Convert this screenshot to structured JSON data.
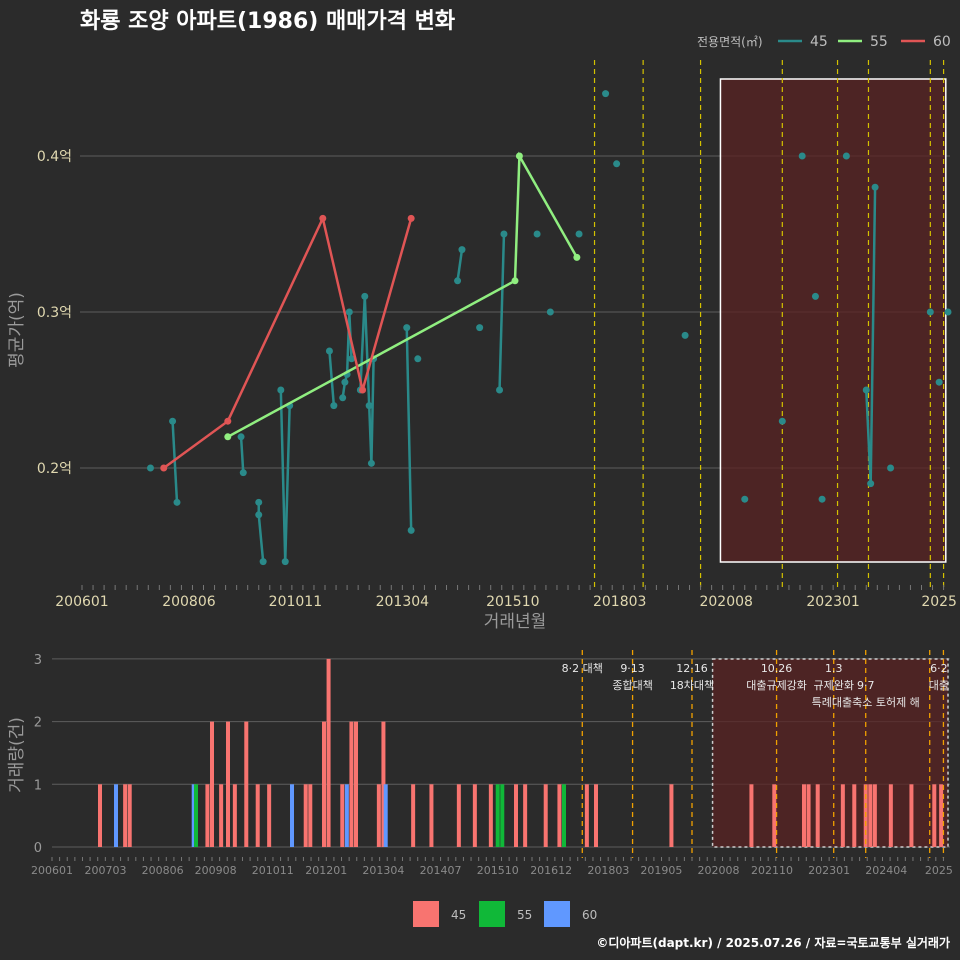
{
  "chart_data": {
    "type": "line",
    "title": "화룡 조양 아파트(1986) 매매가격 변화",
    "legend_title": "전용면적(㎡)",
    "legend_position": "top-right",
    "colors": {
      "45": "#2a8a8a",
      "55": "#90ee80",
      "60": "#e05555",
      "bar45": "#f87470",
      "bar55": "#10b838",
      "bar60": "#6098ff",
      "policy": "#d4c200",
      "highlight": "#5a2323"
    },
    "x_ticks": [
      "200601",
      "200806",
      "201011",
      "201304",
      "201510",
      "201803",
      "202008",
      "202301",
      "2025"
    ],
    "x_ticks_bottom": [
      "200601",
      "200703",
      "200806",
      "200908",
      "201011",
      "201201",
      "201304",
      "201407",
      "201510",
      "201612",
      "201803",
      "201905",
      "202008",
      "202110",
      "202301",
      "202404",
      "2025"
    ],
    "xlabel": "거래년월",
    "ylabel": "평균가(억)",
    "y_ticks": [
      "0.2억",
      "0.3억",
      "0.4억"
    ],
    "ylim": [
      0.125,
      0.46
    ],
    "series": [
      {
        "name": "45",
        "points": [
          [
            2007.55,
            0.2
          ],
          [
            2008.05,
            0.23
          ],
          [
            2008.15,
            0.178
          ],
          [
            2009.6,
            0.22
          ],
          [
            2009.65,
            0.197
          ],
          [
            2010.0,
            0.178
          ],
          [
            2010.0,
            0.17
          ],
          [
            2010.1,
            0.14
          ],
          [
            2010.5,
            0.25
          ],
          [
            2010.6,
            0.14
          ],
          [
            2010.7,
            0.24
          ],
          [
            2011.6,
            0.275
          ],
          [
            2011.7,
            0.24
          ],
          [
            2011.9,
            0.245
          ],
          [
            2011.95,
            0.255
          ],
          [
            2012.0,
            0.26
          ],
          [
            2012.05,
            0.3
          ],
          [
            2012.1,
            0.27
          ],
          [
            2012.3,
            0.25
          ],
          [
            2012.4,
            0.31
          ],
          [
            2012.5,
            0.24
          ],
          [
            2012.55,
            0.203
          ],
          [
            2012.6,
            0.27
          ],
          [
            2013.35,
            0.29
          ],
          [
            2013.45,
            0.16
          ],
          [
            2013.6,
            0.27
          ],
          [
            2014.5,
            0.32
          ],
          [
            2014.6,
            0.34
          ],
          [
            2015.0,
            0.29
          ],
          [
            2015.45,
            0.25
          ],
          [
            2015.55,
            0.35
          ],
          [
            2016.3,
            0.35
          ],
          [
            2016.6,
            0.3
          ],
          [
            2017.25,
            0.35
          ],
          [
            2017.85,
            0.44
          ],
          [
            2018.1,
            0.395
          ],
          [
            2019.65,
            0.285
          ],
          [
            2021.0,
            0.18
          ],
          [
            2021.85,
            0.23
          ],
          [
            2022.3,
            0.4
          ],
          [
            2022.6,
            0.31
          ],
          [
            2022.75,
            0.18
          ],
          [
            2023.3,
            0.4
          ],
          [
            2023.75,
            0.25
          ],
          [
            2023.85,
            0.19
          ],
          [
            2023.95,
            0.38
          ],
          [
            2024.3,
            0.2
          ],
          [
            2025.2,
            0.3
          ],
          [
            2025.4,
            0.255
          ],
          [
            2025.6,
            0.3
          ]
        ]
      },
      {
        "name": "55",
        "points": [
          [
            2009.3,
            0.22
          ],
          [
            2015.8,
            0.32
          ],
          [
            2015.9,
            0.4
          ],
          [
            2017.2,
            0.335
          ]
        ]
      },
      {
        "name": "60",
        "points": [
          [
            2007.85,
            0.2
          ],
          [
            2009.3,
            0.23
          ],
          [
            2011.45,
            0.36
          ],
          [
            2012.35,
            0.25
          ],
          [
            2013.45,
            0.36
          ]
        ]
      }
    ],
    "policy_lines": [
      2017.6,
      2018.7,
      2020.0,
      2021.85,
      2023.1,
      2023.8,
      2025.2,
      2025.5
    ],
    "policy_labels": [
      {
        "at": 2017.6,
        "lines": [
          "8·2 대책"
        ]
      },
      {
        "at": 2018.7,
        "lines": [
          "9·13",
          "종합대책"
        ]
      },
      {
        "at": 2020.0,
        "lines": [
          "12·16",
          "18차대책"
        ]
      },
      {
        "at": 2021.85,
        "lines": [
          "10.26",
          "대출규제강화"
        ]
      },
      {
        "at": 2023.1,
        "lines": [
          "1.3",
          "규제완화"
        ]
      },
      {
        "at": 2023.8,
        "lines": [
          "",
          "9·7",
          "특례대출축소 토허제 해"
        ]
      },
      {
        "at": 2025.4,
        "lines": [
          "6·2",
          "대출"
        ]
      }
    ],
    "volume": {
      "ylabel": "거래량(건)",
      "y_ticks": [
        "0",
        "1",
        "2",
        "3"
      ],
      "ylim": [
        0,
        3.2
      ],
      "legend": [
        "45",
        "55",
        "60"
      ],
      "bars": [
        {
          "x": 2007.05,
          "v": 1,
          "s": "45"
        },
        {
          "x": 2007.4,
          "v": 1,
          "s": "60"
        },
        {
          "x": 2007.6,
          "v": 1,
          "s": "45"
        },
        {
          "x": 2007.7,
          "v": 1,
          "s": "45"
        },
        {
          "x": 2009.1,
          "v": 1,
          "s": "60"
        },
        {
          "x": 2009.15,
          "v": 1,
          "s": "55"
        },
        {
          "x": 2009.4,
          "v": 1,
          "s": "45"
        },
        {
          "x": 2009.5,
          "v": 2,
          "s": "45"
        },
        {
          "x": 2009.7,
          "v": 1,
          "s": "45"
        },
        {
          "x": 2009.85,
          "v": 2,
          "s": "45"
        },
        {
          "x": 2010.0,
          "v": 1,
          "s": "45"
        },
        {
          "x": 2010.25,
          "v": 2,
          "s": "45"
        },
        {
          "x": 2010.5,
          "v": 1,
          "s": "45"
        },
        {
          "x": 2010.75,
          "v": 1,
          "s": "45"
        },
        {
          "x": 2011.25,
          "v": 1,
          "s": "60"
        },
        {
          "x": 2011.55,
          "v": 1,
          "s": "45"
        },
        {
          "x": 2011.65,
          "v": 1,
          "s": "45"
        },
        {
          "x": 2011.95,
          "v": 2,
          "s": "45"
        },
        {
          "x": 2012.05,
          "v": 3,
          "s": "45"
        },
        {
          "x": 2012.35,
          "v": 1,
          "s": "45"
        },
        {
          "x": 2012.45,
          "v": 1,
          "s": "60"
        },
        {
          "x": 2012.55,
          "v": 2,
          "s": "45"
        },
        {
          "x": 2012.65,
          "v": 2,
          "s": "45"
        },
        {
          "x": 2013.15,
          "v": 1,
          "s": "45"
        },
        {
          "x": 2013.25,
          "v": 2,
          "s": "45"
        },
        {
          "x": 2013.3,
          "v": 1,
          "s": "60"
        },
        {
          "x": 2013.9,
          "v": 1,
          "s": "45"
        },
        {
          "x": 2014.3,
          "v": 1,
          "s": "45"
        },
        {
          "x": 2014.9,
          "v": 1,
          "s": "45"
        },
        {
          "x": 2015.25,
          "v": 1,
          "s": "45"
        },
        {
          "x": 2015.6,
          "v": 1,
          "s": "45"
        },
        {
          "x": 2015.75,
          "v": 1,
          "s": "55"
        },
        {
          "x": 2015.85,
          "v": 1,
          "s": "55"
        },
        {
          "x": 2016.15,
          "v": 1,
          "s": "45"
        },
        {
          "x": 2016.35,
          "v": 1,
          "s": "45"
        },
        {
          "x": 2016.8,
          "v": 1,
          "s": "45"
        },
        {
          "x": 2017.1,
          "v": 1,
          "s": "45"
        },
        {
          "x": 2017.2,
          "v": 1,
          "s": "55"
        },
        {
          "x": 2017.7,
          "v": 1,
          "s": "45"
        },
        {
          "x": 2017.9,
          "v": 1,
          "s": "45"
        },
        {
          "x": 2019.55,
          "v": 1,
          "s": "45"
        },
        {
          "x": 2021.3,
          "v": 1,
          "s": "45"
        },
        {
          "x": 2021.8,
          "v": 1,
          "s": "45"
        },
        {
          "x": 2022.45,
          "v": 1,
          "s": "45"
        },
        {
          "x": 2022.55,
          "v": 1,
          "s": "45"
        },
        {
          "x": 2022.75,
          "v": 1,
          "s": "45"
        },
        {
          "x": 2023.3,
          "v": 1,
          "s": "45"
        },
        {
          "x": 2023.55,
          "v": 1,
          "s": "45"
        },
        {
          "x": 2023.8,
          "v": 1,
          "s": "45"
        },
        {
          "x": 2023.9,
          "v": 1,
          "s": "45"
        },
        {
          "x": 2024.0,
          "v": 1,
          "s": "45"
        },
        {
          "x": 2024.35,
          "v": 1,
          "s": "45"
        },
        {
          "x": 2024.8,
          "v": 1,
          "s": "45"
        },
        {
          "x": 2025.3,
          "v": 1,
          "s": "45"
        },
        {
          "x": 2025.45,
          "v": 1,
          "s": "45"
        }
      ]
    },
    "highlight_range": [
      2020.45,
      2025.55
    ],
    "footer": "©디아파트(dapt.kr) / 2025.07.26 / 자료=국토교통부 실거래가"
  }
}
